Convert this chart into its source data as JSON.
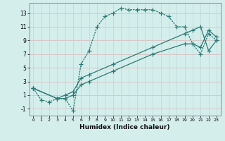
{
  "xlabel": "Humidex (Indice chaleur)",
  "background_color": "#d4eeec",
  "grid_color_major": "#c8e4e2",
  "grid_color_minor": "#ddf2f0",
  "line_color": "#2d7a75",
  "xlim": [
    -0.5,
    23.5
  ],
  "ylim": [
    -2.0,
    14.5
  ],
  "xticks": [
    0,
    1,
    2,
    3,
    4,
    5,
    6,
    7,
    8,
    9,
    10,
    11,
    12,
    13,
    14,
    15,
    16,
    17,
    18,
    19,
    20,
    21,
    22,
    23
  ],
  "yticks": [
    -1,
    1,
    3,
    5,
    7,
    9,
    11,
    13
  ],
  "line1_x": [
    0,
    1,
    2,
    3,
    4,
    5,
    6,
    7,
    8,
    9,
    10,
    11,
    12,
    13,
    14,
    15,
    16,
    17,
    18,
    19,
    20,
    21,
    22,
    23
  ],
  "line1_y": [
    2.0,
    0.3,
    0.0,
    0.5,
    0.5,
    -1.3,
    5.5,
    7.5,
    11.0,
    12.5,
    13.0,
    13.7,
    13.5,
    13.5,
    13.5,
    13.5,
    13.0,
    12.5,
    11.0,
    11.0,
    8.5,
    7.0,
    10.0,
    9.0
  ],
  "line2_x": [
    0,
    3,
    4,
    5,
    6,
    7,
    10,
    15,
    19,
    20,
    21,
    22,
    23
  ],
  "line2_y": [
    2.0,
    0.5,
    0.5,
    1.0,
    2.5,
    3.0,
    4.5,
    7.0,
    8.5,
    8.5,
    8.0,
    10.5,
    9.5
  ],
  "line3_x": [
    0,
    3,
    4,
    5,
    6,
    7,
    10,
    15,
    19,
    20,
    21,
    22,
    23
  ],
  "line3_y": [
    2.0,
    0.5,
    1.0,
    1.5,
    3.5,
    4.0,
    5.5,
    8.0,
    10.0,
    10.5,
    11.0,
    7.5,
    9.0
  ],
  "marker_size": 4,
  "line_width": 0.9
}
